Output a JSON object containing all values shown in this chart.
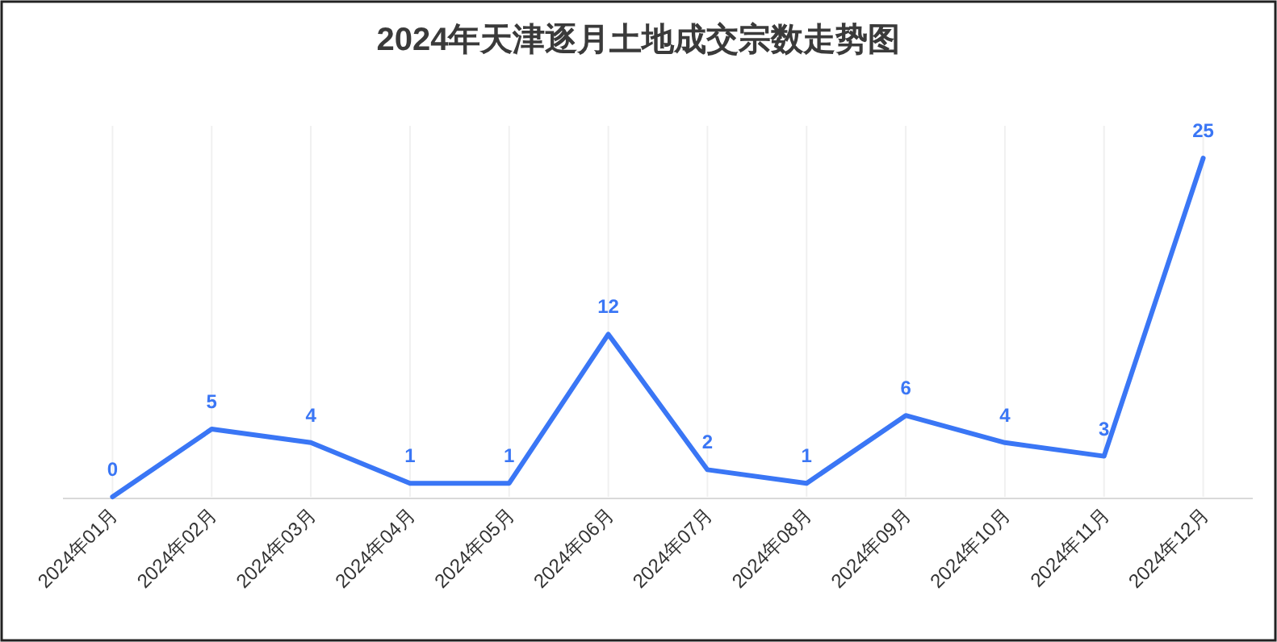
{
  "chart_data": {
    "type": "line",
    "title": "2024年天津逐月土地成交宗数走势图",
    "categories": [
      "2024年01月",
      "2024年02月",
      "2024年03月",
      "2024年04月",
      "2024年05月",
      "2024年06月",
      "2024年07月",
      "2024年08月",
      "2024年09月",
      "2024年10月",
      "2024年11月",
      "2024年12月"
    ],
    "series": [
      {
        "color": "#3a76f5",
        "values": [
          0,
          5,
          4,
          1,
          1,
          12,
          2,
          1,
          6,
          4,
          3,
          25
        ]
      }
    ],
    "data_labels": true,
    "grid": "x",
    "marker": "none",
    "line_style": "solid"
  }
}
